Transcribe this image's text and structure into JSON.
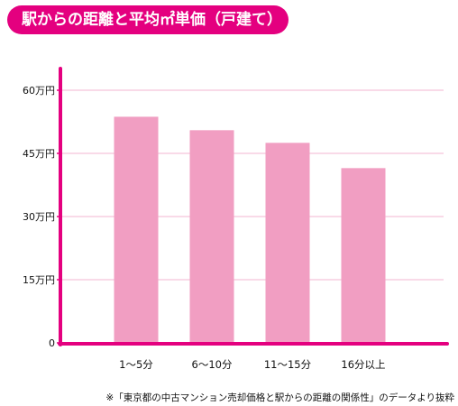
{
  "title": "駅からの距離と平均㎡単価（戸建て）",
  "footnote": "※「東京都の中古マンション売却価格と駅からの距離の関係性」のデータより抜粋",
  "colors": {
    "accent": "#e4007f",
    "bar": "#f19ec2",
    "grid": "#f3b6d2",
    "axis": "#e4007f"
  },
  "chart_data": {
    "type": "bar",
    "title": "駅からの距離と平均㎡単価（戸建て）",
    "categories": [
      "1〜5分",
      "6〜10分",
      "11〜15分",
      "16分以上"
    ],
    "values": [
      537000,
      505000,
      475000,
      415000
    ],
    "ylim": [
      0,
      600000
    ],
    "yticks": [
      0,
      150000,
      300000,
      450000,
      600000
    ],
    "ytick_labels": [
      "0",
      "15万円",
      "30万円",
      "45万円",
      "60万円"
    ],
    "xlabel": "",
    "ylabel": "",
    "grid": true
  }
}
